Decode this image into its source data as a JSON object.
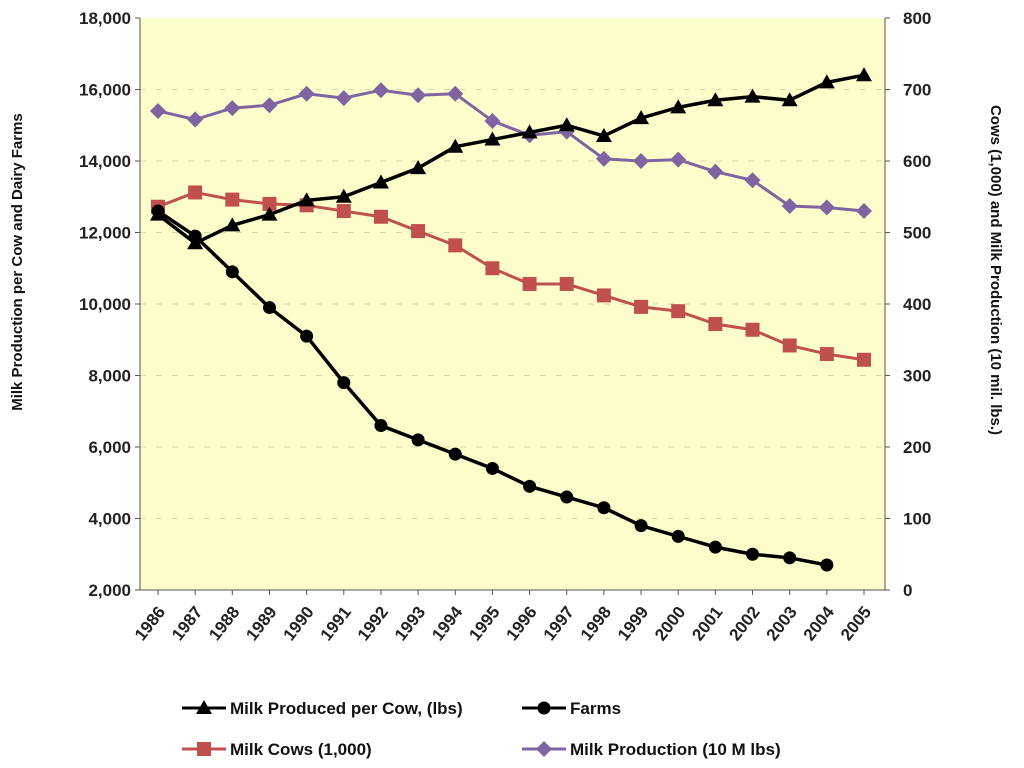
{
  "chart_data": {
    "type": "line",
    "categories": [
      "1986",
      "1987",
      "1988",
      "1989",
      "1990",
      "1991",
      "1992",
      "1993",
      "1994",
      "1995",
      "1996",
      "1997",
      "1998",
      "1999",
      "2000",
      "2001",
      "2002",
      "2003",
      "2004",
      "2005"
    ],
    "ylabel_left": "Milk Production per Cow and Dairy Farms",
    "ylabel_right": "Cows (1,000) and Milk Production (10 mil. lbs.)",
    "ylim_left": [
      2000,
      18000
    ],
    "ylim_right": [
      0,
      800
    ],
    "yticks_left": [
      "2,000",
      "4,000",
      "6,000",
      "8,000",
      "10,000",
      "12,000",
      "14,000",
      "16,000",
      "18,000"
    ],
    "yticks_right": [
      "0",
      "100",
      "200",
      "300",
      "400",
      "500",
      "600",
      "700",
      "800"
    ],
    "legend_position": "bottom",
    "plot_background": "#fdfdcc",
    "series": [
      {
        "name": "Milk Produced per Cow, (lbs)",
        "axis": "left",
        "color": "#000000",
        "marker": "triangle",
        "values": [
          12500,
          11700,
          12200,
          12500,
          12900,
          13000,
          13400,
          13800,
          14400,
          14600,
          14800,
          15000,
          14700,
          15200,
          15500,
          15700,
          15800,
          15700,
          16200,
          16400
        ]
      },
      {
        "name": "Farms",
        "axis": "left",
        "color": "#000000",
        "marker": "circle",
        "values": [
          12600,
          11900,
          10900,
          9900,
          9100,
          7800,
          6600,
          6200,
          5800,
          5400,
          4900,
          4600,
          4300,
          3800,
          3500,
          3200,
          3000,
          2900,
          2700,
          null
        ]
      },
      {
        "name": "Milk Cows (1,000)",
        "axis": "right",
        "color": "#c0504d",
        "marker": "square",
        "values": [
          536,
          556,
          546,
          540,
          538,
          530,
          522,
          502,
          482,
          450,
          428,
          428,
          412,
          396,
          390,
          372,
          364,
          342,
          330,
          322
        ]
      },
      {
        "name": "Milk Production (10 M lbs)",
        "axis": "right",
        "color": "#8064a2",
        "marker": "diamond",
        "values": [
          670,
          658,
          674,
          678,
          694,
          688,
          699,
          692,
          694,
          656,
          636,
          641,
          603,
          600,
          602,
          585,
          573,
          537,
          535,
          530
        ]
      }
    ]
  }
}
